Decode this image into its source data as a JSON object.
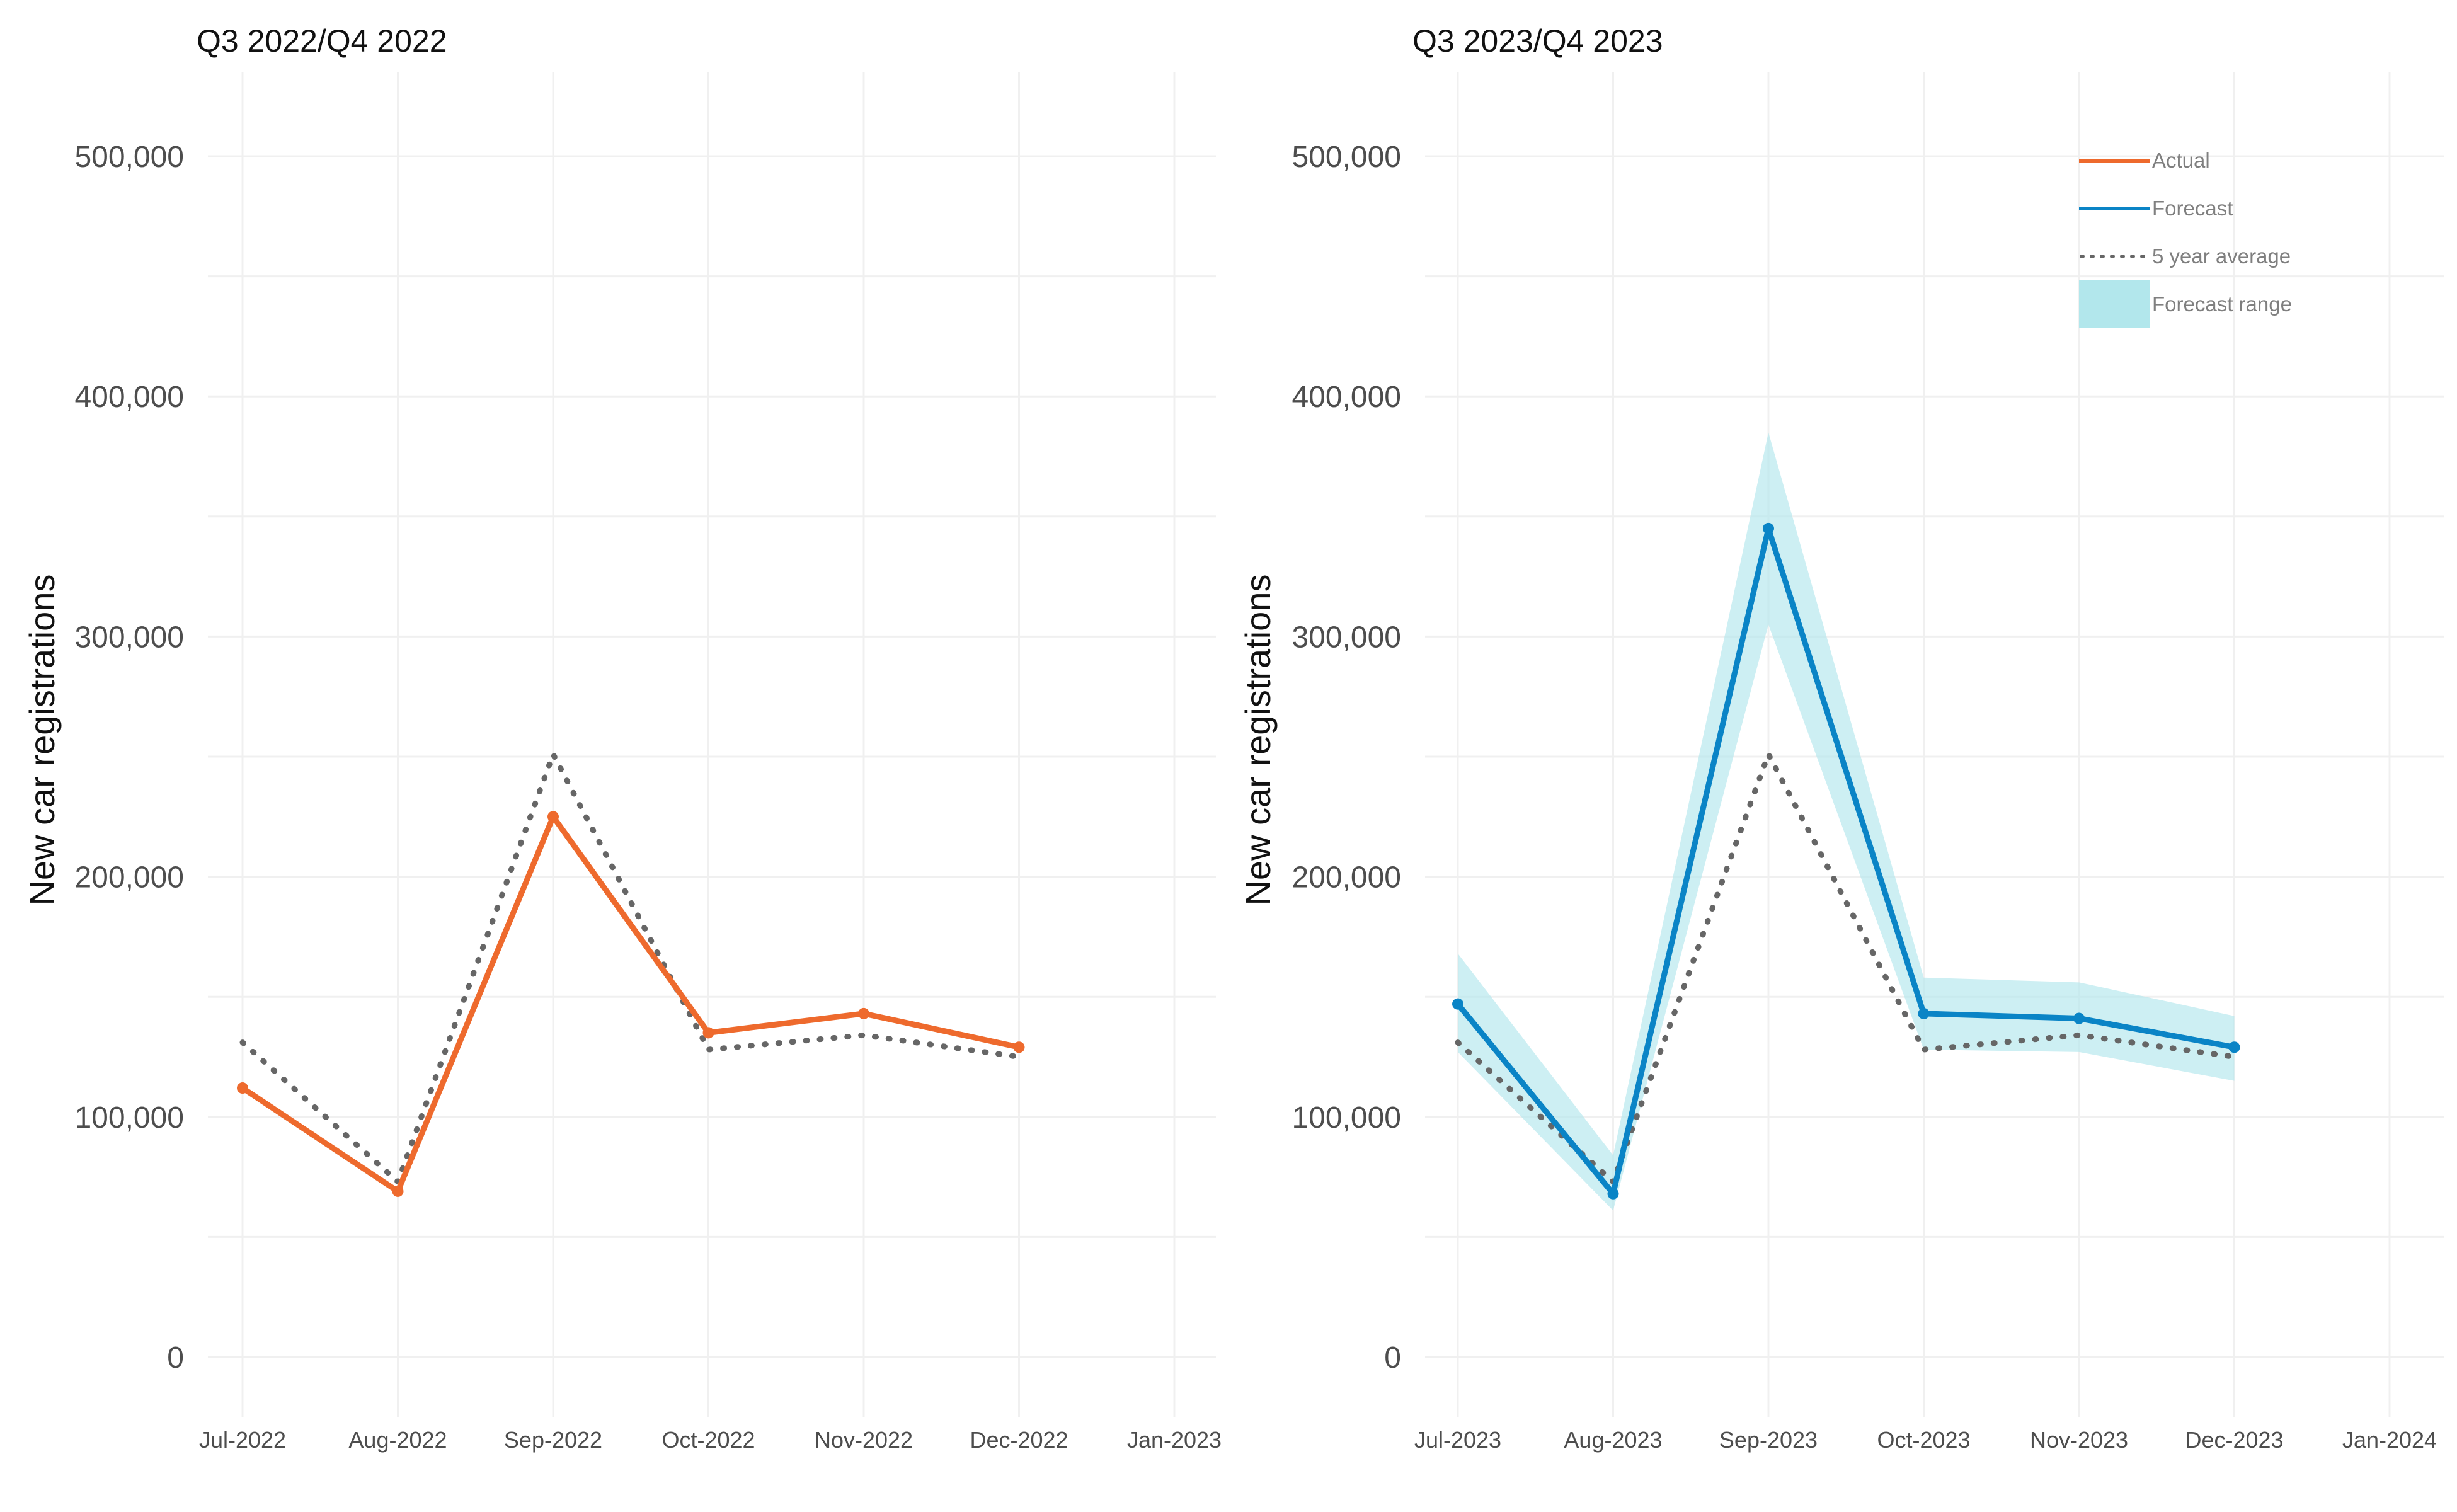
{
  "chart_data": [
    {
      "type": "line",
      "title": "Q3 2022/Q4 2022",
      "ylabel": "New car registrations",
      "xlabel": "",
      "categories": [
        "Jul-2022",
        "Aug-2022",
        "Sep-2022",
        "Oct-2022",
        "Nov-2022",
        "Dec-2022",
        "Jan-2023"
      ],
      "ylim": [
        0,
        500000
      ],
      "yticks": [
        0,
        100000,
        200000,
        300000,
        400000,
        500000
      ],
      "ytick_labels": [
        "0",
        "100,000",
        "200,000",
        "300,000",
        "400,000",
        "500,000"
      ],
      "grid": true,
      "series": [
        {
          "name": "Actual",
          "style": "solid",
          "color": "#ee6a2d",
          "values": [
            112000,
            69000,
            225000,
            135000,
            143000,
            129000,
            null
          ]
        },
        {
          "name": "5 year average",
          "style": "dotted",
          "color": "#666666",
          "values": [
            131000,
            73000,
            251000,
            128000,
            134000,
            125000,
            null
          ]
        }
      ]
    },
    {
      "type": "line",
      "title": "Q3 2023/Q4 2023",
      "ylabel": "New car registrations",
      "xlabel": "",
      "categories": [
        "Jul-2023",
        "Aug-2023",
        "Sep-2023",
        "Oct-2023",
        "Nov-2023",
        "Dec-2023",
        "Jan-2024"
      ],
      "ylim": [
        0,
        500000
      ],
      "yticks": [
        0,
        100000,
        200000,
        300000,
        400000,
        500000
      ],
      "ytick_labels": [
        "0",
        "100,000",
        "200,000",
        "300,000",
        "400,000",
        "500,000"
      ],
      "grid": true,
      "legend_position": "top-right",
      "legend": [
        {
          "label": "Actual",
          "kind": "line",
          "color": "#ee6a2d"
        },
        {
          "label": "Forecast",
          "kind": "line",
          "color": "#0a84c6"
        },
        {
          "label": "5 year average",
          "kind": "dotted",
          "color": "#666666"
        },
        {
          "label": "Forecast range",
          "kind": "band",
          "color": "#b2e7ec"
        }
      ],
      "series": [
        {
          "name": "Forecast",
          "style": "solid",
          "color": "#0a84c6",
          "values": [
            147000,
            68000,
            345000,
            143000,
            141000,
            129000,
            null
          ]
        },
        {
          "name": "5 year average",
          "style": "dotted",
          "color": "#666666",
          "values": [
            131000,
            73000,
            251000,
            128000,
            134000,
            125000,
            null
          ]
        }
      ],
      "band": {
        "name": "Forecast range",
        "color": "#b2e7ec",
        "lower": [
          127000,
          61000,
          305000,
          128000,
          127000,
          115000,
          null
        ],
        "upper": [
          168000,
          84000,
          385000,
          158000,
          156000,
          142000,
          null
        ]
      }
    }
  ]
}
